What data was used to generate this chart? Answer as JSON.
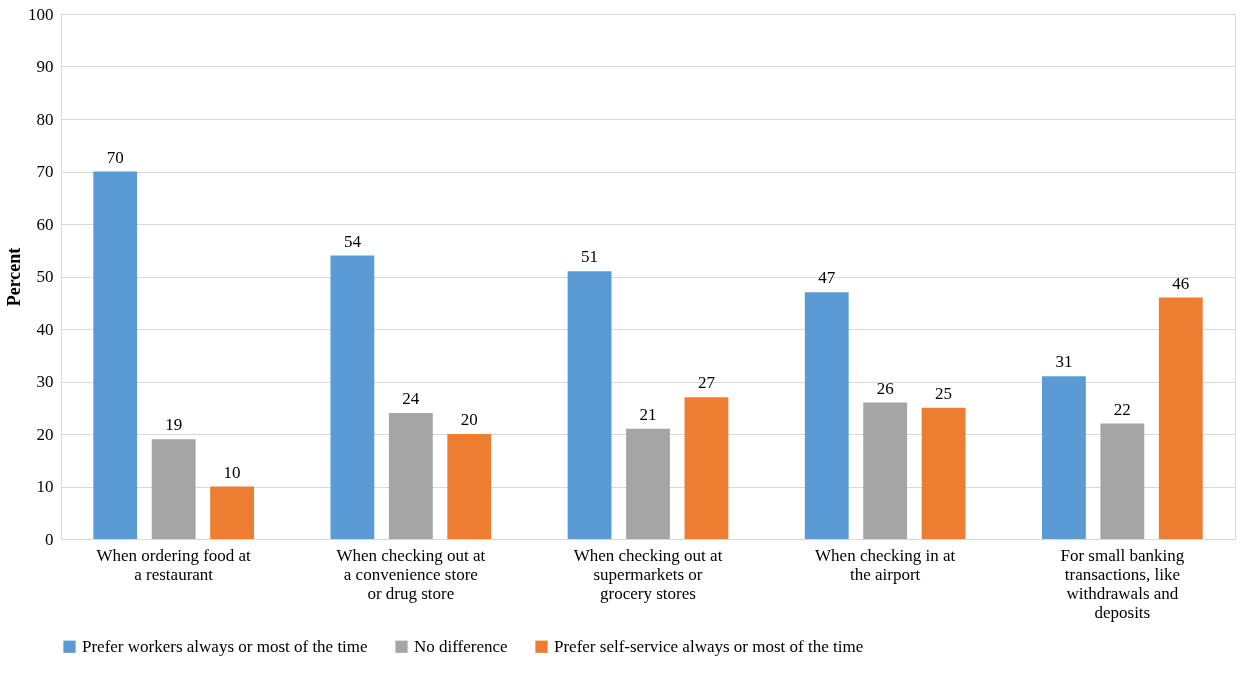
{
  "chart_data": {
    "type": "bar",
    "ylabel": "Percent",
    "categories": [
      "When ordering food at a restaurant",
      "When checking out at a convenience store or drug store",
      "When checking out at supermarkets or grocery stores",
      "When checking in at the airport",
      "For small banking transactions, like withdrawals and deposits"
    ],
    "series": [
      {
        "name": "Prefer workers always or most of the time",
        "color": "#5b9bd5",
        "values": [
          70,
          54,
          51,
          47,
          31
        ]
      },
      {
        "name": "No difference",
        "color": "#a5a5a5",
        "values": [
          19,
          24,
          21,
          26,
          22
        ]
      },
      {
        "name": "Prefer self-service always or most of the time",
        "color": "#ed7d31",
        "values": [
          10,
          20,
          27,
          25,
          46
        ]
      }
    ],
    "ylim": [
      0,
      100
    ],
    "yticks": [
      0,
      10,
      20,
      30,
      40,
      50,
      60,
      70,
      80,
      90,
      100
    ],
    "grid": "y",
    "legend": "bottom",
    "data_labels": true
  }
}
